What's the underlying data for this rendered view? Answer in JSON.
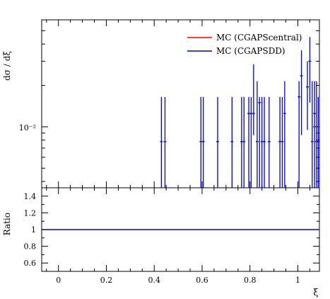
{
  "chart_data": [
    {
      "type": "line",
      "panel": "main",
      "ylabel": "dσ / dξ",
      "yscale": "log",
      "y_tick_label_major": "10⁻²",
      "ylim": [
        0.0036,
        0.06
      ],
      "xlim": [
        -0.07,
        1.09
      ],
      "legend_position": "top-right",
      "series": [
        {
          "name": "MC (CGAPScentral)",
          "color": "#ff0000"
        },
        {
          "name": "MC (CGAPSDD)",
          "color": "#0000dd"
        }
      ],
      "points": [
        {
          "x": 0.43,
          "y": 0.0078,
          "ylo": 0.0036,
          "yhi": 0.0165
        },
        {
          "x": 0.445,
          "y": 0.0078,
          "ylo": 0.0036,
          "yhi": 0.0165
        },
        {
          "x": 0.595,
          "y": 0.0078,
          "ylo": 0.0036,
          "yhi": 0.0165
        },
        {
          "x": 0.605,
          "y": 0.0078,
          "ylo": 0.0036,
          "yhi": 0.0165
        },
        {
          "x": 0.665,
          "y": 0.0078,
          "ylo": 0.0036,
          "yhi": 0.0165
        },
        {
          "x": 0.725,
          "y": 0.0078,
          "ylo": 0.0036,
          "yhi": 0.0165
        },
        {
          "x": 0.765,
          "y": 0.0078,
          "ylo": 0.0036,
          "yhi": 0.0165
        },
        {
          "x": 0.775,
          "y": 0.0078,
          "ylo": 0.0036,
          "yhi": 0.0165
        },
        {
          "x": 0.795,
          "y": 0.0125,
          "ylo": 0.0036,
          "yhi": 0.0165
        },
        {
          "x": 0.805,
          "y": 0.0125,
          "ylo": 0.0036,
          "yhi": 0.0165
        },
        {
          "x": 0.815,
          "y": 0.0125,
          "ylo": 0.0087,
          "yhi": 0.0285
        },
        {
          "x": 0.83,
          "y": 0.0078,
          "ylo": 0.0036,
          "yhi": 0.0215
        },
        {
          "x": 0.84,
          "y": 0.015,
          "ylo": 0.0036,
          "yhi": 0.0165
        },
        {
          "x": 0.85,
          "y": 0.0078,
          "ylo": 0.0036,
          "yhi": 0.0165
        },
        {
          "x": 0.86,
          "y": 0.0078,
          "ylo": 0.0036,
          "yhi": 0.0165
        },
        {
          "x": 0.88,
          "y": 0.0078,
          "ylo": 0.0036,
          "yhi": 0.0165
        },
        {
          "x": 0.925,
          "y": 0.0078,
          "ylo": 0.0036,
          "yhi": 0.0165
        },
        {
          "x": 0.935,
          "y": 0.0078,
          "ylo": 0.0036,
          "yhi": 0.0165
        },
        {
          "x": 0.945,
          "y": 0.0125,
          "ylo": 0.0036,
          "yhi": 0.0215
        },
        {
          "x": 1.005,
          "y": 0.0165,
          "ylo": 0.0036,
          "yhi": 0.0215
        },
        {
          "x": 1.015,
          "y": 0.0235,
          "ylo": 0.0087,
          "yhi": 0.036
        },
        {
          "x": 1.04,
          "y": 0.0195,
          "ylo": 0.0095,
          "yhi": 0.03
        },
        {
          "x": 1.05,
          "y": 0.03,
          "ylo": 0.015,
          "yhi": 0.045
        },
        {
          "x": 1.06,
          "y": 0.0078,
          "ylo": 0.0036,
          "yhi": 0.0215
        },
        {
          "x": 1.07,
          "y": 0.0125,
          "ylo": 0.0036,
          "yhi": 0.0215
        },
        {
          "x": 1.078,
          "y": 0.0078,
          "ylo": 0.0036,
          "yhi": 0.0215
        },
        {
          "x": 1.085,
          "y": 0.0078,
          "ylo": 0.0036,
          "yhi": 0.0165
        }
      ]
    },
    {
      "type": "line",
      "panel": "ratio",
      "ylabel": "Ratio",
      "xlabel": "ξ",
      "ylim": [
        0.5,
        1.5
      ],
      "xlim": [
        -0.07,
        1.09
      ],
      "y_ticks": [
        0.6,
        0.8,
        1,
        1.2,
        1.4
      ],
      "y_tick_labels": [
        "0.6",
        "0.8",
        "1",
        "1.2",
        "1.4"
      ],
      "x_ticks": [
        0,
        0.2,
        0.4,
        0.6,
        0.8,
        1
      ],
      "x_tick_labels": [
        "0",
        "0.2",
        "0.4",
        "0.6",
        "0.8",
        "1"
      ],
      "series": [
        {
          "color": "#0000dd",
          "values": [
            [
              -0.07,
              1
            ],
            [
              1.09,
              1
            ]
          ]
        }
      ]
    }
  ]
}
